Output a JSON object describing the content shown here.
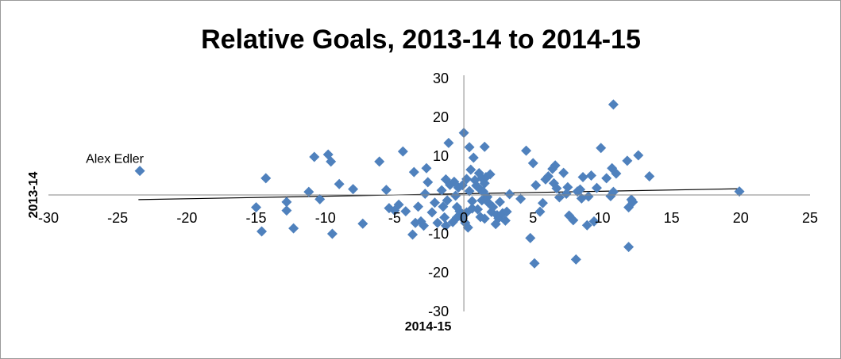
{
  "chart_data": {
    "type": "scatter",
    "title": "Relative Goals, 2013-14 to 2014-15",
    "xlabel": "2014-15",
    "ylabel": "2013-14",
    "xlim": [
      -30,
      25
    ],
    "ylim": [
      -30,
      30
    ],
    "x_ticks": [
      -30,
      -25,
      -20,
      -15,
      -10,
      -5,
      0,
      5,
      10,
      15,
      20,
      25
    ],
    "y_ticks": [
      -30,
      -20,
      -10,
      0,
      10,
      20,
      30
    ],
    "x_tick_labels": [
      "-30",
      "-25",
      "-20",
      "-15",
      "-10",
      "-5",
      "0",
      "5",
      "10",
      "15",
      "20",
      "25"
    ],
    "y_tick_labels": [
      "-30",
      "-20",
      "-10",
      "",
      "10",
      "20",
      "30"
    ],
    "grid": false,
    "legend": "none",
    "marker_color": "#4f81bd",
    "trendline": {
      "type": "linear",
      "x": [
        -23.5,
        20
      ],
      "y": [
        -1.2,
        1.6
      ],
      "color": "#000000"
    },
    "annotations": [
      {
        "text": "Alex Edler",
        "x": -23.4,
        "y": 6.2
      }
    ],
    "points": [
      {
        "x": -23.4,
        "y": 6.2
      },
      {
        "x": -15.0,
        "y": -3.2
      },
      {
        "x": -14.6,
        "y": -9.4
      },
      {
        "x": -14.3,
        "y": 4.3
      },
      {
        "x": -12.8,
        "y": -1.8
      },
      {
        "x": -12.8,
        "y": -4.0
      },
      {
        "x": -12.3,
        "y": -8.6
      },
      {
        "x": -11.2,
        "y": 0.8
      },
      {
        "x": -10.8,
        "y": 9.8
      },
      {
        "x": -10.4,
        "y": -1.1
      },
      {
        "x": -9.8,
        "y": 10.4
      },
      {
        "x": -9.6,
        "y": 8.6
      },
      {
        "x": -9.5,
        "y": -10.0
      },
      {
        "x": -9.0,
        "y": 2.8
      },
      {
        "x": -8.0,
        "y": 1.5
      },
      {
        "x": -7.3,
        "y": -7.4
      },
      {
        "x": -6.1,
        "y": 8.6
      },
      {
        "x": -5.6,
        "y": 1.3
      },
      {
        "x": -5.4,
        "y": -3.4
      },
      {
        "x": -5.0,
        "y": -4.0
      },
      {
        "x": -4.7,
        "y": -2.5
      },
      {
        "x": -4.4,
        "y": 11.2
      },
      {
        "x": -4.2,
        "y": -4.2
      },
      {
        "x": -3.7,
        "y": -10.2
      },
      {
        "x": -3.6,
        "y": 5.9
      },
      {
        "x": -3.5,
        "y": -7.2
      },
      {
        "x": -3.3,
        "y": -3.0
      },
      {
        "x": -3.1,
        "y": -6.8
      },
      {
        "x": -2.9,
        "y": -7.9
      },
      {
        "x": -2.8,
        "y": 0.3
      },
      {
        "x": -2.7,
        "y": 6.9
      },
      {
        "x": -2.6,
        "y": 3.3
      },
      {
        "x": -2.3,
        "y": -4.5
      },
      {
        "x": -2.1,
        "y": -2.0
      },
      {
        "x": -1.9,
        "y": -7.2
      },
      {
        "x": -1.6,
        "y": 1.2
      },
      {
        "x": -1.5,
        "y": -3.0
      },
      {
        "x": -1.4,
        "y": -5.8
      },
      {
        "x": -1.3,
        "y": 4.0
      },
      {
        "x": -1.3,
        "y": -7.9
      },
      {
        "x": -1.2,
        "y": -1.4
      },
      {
        "x": -1.1,
        "y": 13.4
      },
      {
        "x": -1.0,
        "y": 2.6
      },
      {
        "x": -0.8,
        "y": -7.0
      },
      {
        "x": -0.7,
        "y": 3.4
      },
      {
        "x": -0.6,
        "y": -0.2
      },
      {
        "x": -0.5,
        "y": -5.8
      },
      {
        "x": -0.5,
        "y": -3.1
      },
      {
        "x": -0.4,
        "y": 1.9
      },
      {
        "x": -0.3,
        "y": -4.2
      },
      {
        "x": -0.2,
        "y": -5.0
      },
      {
        "x": -0.1,
        "y": -6.0
      },
      {
        "x": -0.1,
        "y": 2.5
      },
      {
        "x": 0.0,
        "y": 16.0
      },
      {
        "x": 0.1,
        "y": -7.2
      },
      {
        "x": 0.2,
        "y": -4.5
      },
      {
        "x": 0.2,
        "y": 4.1
      },
      {
        "x": 0.3,
        "y": -8.4
      },
      {
        "x": 0.4,
        "y": 12.3
      },
      {
        "x": 0.4,
        "y": 1.0
      },
      {
        "x": 0.5,
        "y": 6.5
      },
      {
        "x": 0.6,
        "y": -1.6
      },
      {
        "x": 0.6,
        "y": -3.5
      },
      {
        "x": 0.7,
        "y": 9.6
      },
      {
        "x": 0.8,
        "y": 3.8
      },
      {
        "x": 0.9,
        "y": 2.4
      },
      {
        "x": 1.0,
        "y": -3.7
      },
      {
        "x": 1.1,
        "y": 5.6
      },
      {
        "x": 1.2,
        "y": 1.4
      },
      {
        "x": 1.2,
        "y": -5.7
      },
      {
        "x": 1.3,
        "y": -1.4
      },
      {
        "x": 1.3,
        "y": 4.3
      },
      {
        "x": 1.4,
        "y": 0.9
      },
      {
        "x": 1.5,
        "y": 3.0
      },
      {
        "x": 1.5,
        "y": 12.4
      },
      {
        "x": 1.5,
        "y": -6.1
      },
      {
        "x": 1.6,
        "y": 4.6
      },
      {
        "x": 1.7,
        "y": -0.5
      },
      {
        "x": 1.8,
        "y": -2.1
      },
      {
        "x": 1.9,
        "y": 5.3
      },
      {
        "x": 2.0,
        "y": -4.4
      },
      {
        "x": 2.1,
        "y": -3.1
      },
      {
        "x": 2.3,
        "y": -7.5
      },
      {
        "x": 2.4,
        "y": -5.2
      },
      {
        "x": 2.5,
        "y": -6.0
      },
      {
        "x": 2.6,
        "y": -1.8
      },
      {
        "x": 2.8,
        "y": -4.7
      },
      {
        "x": 3.0,
        "y": -6.6
      },
      {
        "x": 3.1,
        "y": -4.3
      },
      {
        "x": 3.3,
        "y": 0.2
      },
      {
        "x": 4.1,
        "y": -1.0
      },
      {
        "x": 4.5,
        "y": 11.4
      },
      {
        "x": 4.8,
        "y": -11.1
      },
      {
        "x": 5.0,
        "y": 8.2
      },
      {
        "x": 5.1,
        "y": -17.6
      },
      {
        "x": 5.2,
        "y": 2.5
      },
      {
        "x": 5.5,
        "y": -4.3
      },
      {
        "x": 5.7,
        "y": -2.1
      },
      {
        "x": 5.9,
        "y": 4.0
      },
      {
        "x": 6.1,
        "y": 4.8
      },
      {
        "x": 6.4,
        "y": 6.7
      },
      {
        "x": 6.5,
        "y": 3.0
      },
      {
        "x": 6.6,
        "y": 7.6
      },
      {
        "x": 6.7,
        "y": 1.7
      },
      {
        "x": 6.9,
        "y": -0.6
      },
      {
        "x": 7.2,
        "y": 5.7
      },
      {
        "x": 7.4,
        "y": 0.3
      },
      {
        "x": 7.5,
        "y": 2.0
      },
      {
        "x": 7.6,
        "y": -5.3
      },
      {
        "x": 7.9,
        "y": -6.5
      },
      {
        "x": 8.1,
        "y": -16.6
      },
      {
        "x": 8.2,
        "y": 0.9
      },
      {
        "x": 8.4,
        "y": 1.4
      },
      {
        "x": 8.5,
        "y": -0.9
      },
      {
        "x": 8.6,
        "y": 4.6
      },
      {
        "x": 8.9,
        "y": -7.8
      },
      {
        "x": 9.0,
        "y": -0.4
      },
      {
        "x": 9.2,
        "y": 5.0
      },
      {
        "x": 9.4,
        "y": -6.8
      },
      {
        "x": 9.6,
        "y": 1.8
      },
      {
        "x": 9.9,
        "y": 12.1
      },
      {
        "x": 10.3,
        "y": 4.3
      },
      {
        "x": 10.6,
        "y": -0.3
      },
      {
        "x": 10.8,
        "y": 23.3
      },
      {
        "x": 11.8,
        "y": 8.8
      },
      {
        "x": 11.9,
        "y": -13.4
      },
      {
        "x": 12.2,
        "y": -1.8
      },
      {
        "x": 12.6,
        "y": 10.2
      },
      {
        "x": 10.7,
        "y": 6.9
      },
      {
        "x": 10.8,
        "y": 0.8
      },
      {
        "x": 11.0,
        "y": 5.5
      },
      {
        "x": 11.9,
        "y": -3.2
      },
      {
        "x": 12.1,
        "y": -1.2
      },
      {
        "x": 13.4,
        "y": 4.8
      },
      {
        "x": 19.9,
        "y": 0.9
      }
    ]
  }
}
